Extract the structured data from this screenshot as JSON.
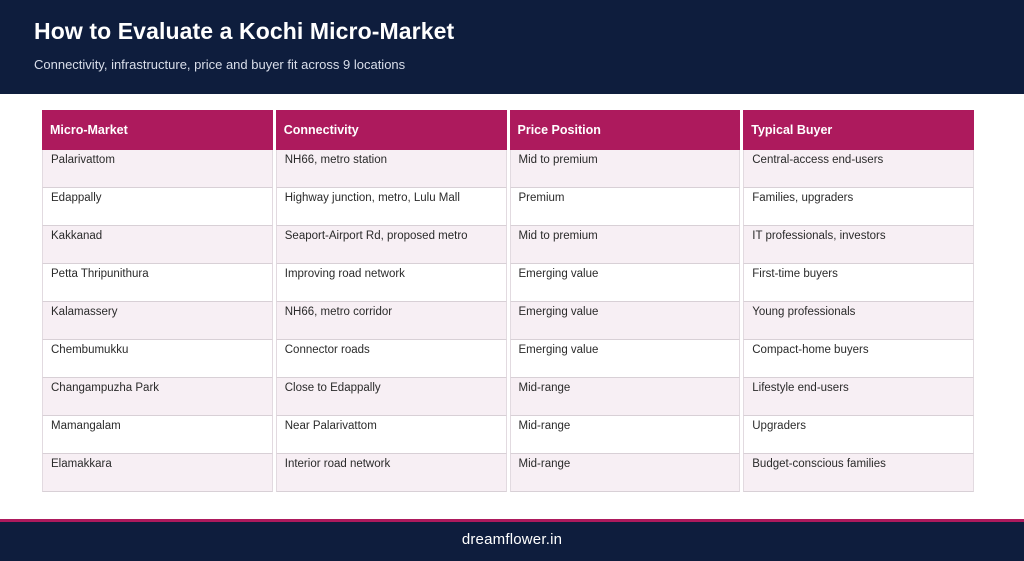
{
  "header": {
    "title": "How to Evaluate a Kochi Micro-Market",
    "subtitle": "Connectivity, infrastructure, price and buyer fit across 9 locations"
  },
  "table": {
    "columns": [
      "Micro-Market",
      "Connectivity",
      "Price Position",
      "Typical Buyer"
    ],
    "rows": [
      [
        "Palarivattom",
        "NH66, metro station",
        "Mid to premium",
        "Central-access end-users"
      ],
      [
        "Edappally",
        "Highway junction, metro, Lulu Mall",
        "Premium",
        "Families, upgraders"
      ],
      [
        "Kakkanad",
        "Seaport-Airport Rd, proposed metro",
        "Mid to premium",
        "IT professionals, investors"
      ],
      [
        "Petta Thripunithura",
        "Improving road network",
        "Emerging value",
        "First-time buyers"
      ],
      [
        "Kalamassery",
        "NH66, metro corridor",
        "Emerging value",
        "Young professionals"
      ],
      [
        "Chembumukku",
        "Connector roads",
        "Emerging value",
        "Compact-home buyers"
      ],
      [
        "Changampuzha Park",
        "Close to Edappally",
        "Mid-range",
        "Lifestyle end-users"
      ],
      [
        "Mamangalam",
        "Near Palarivattom",
        "Mid-range",
        "Upgraders"
      ],
      [
        "Elamakkara",
        "Interior road network",
        "Mid-range",
        "Budget-conscious families"
      ]
    ]
  },
  "footer": {
    "site": "dreamflower.in"
  },
  "colors": {
    "navy": "#0e1d3d",
    "accent": "#ad1a5d",
    "row_tint": "#f7eff4"
  }
}
